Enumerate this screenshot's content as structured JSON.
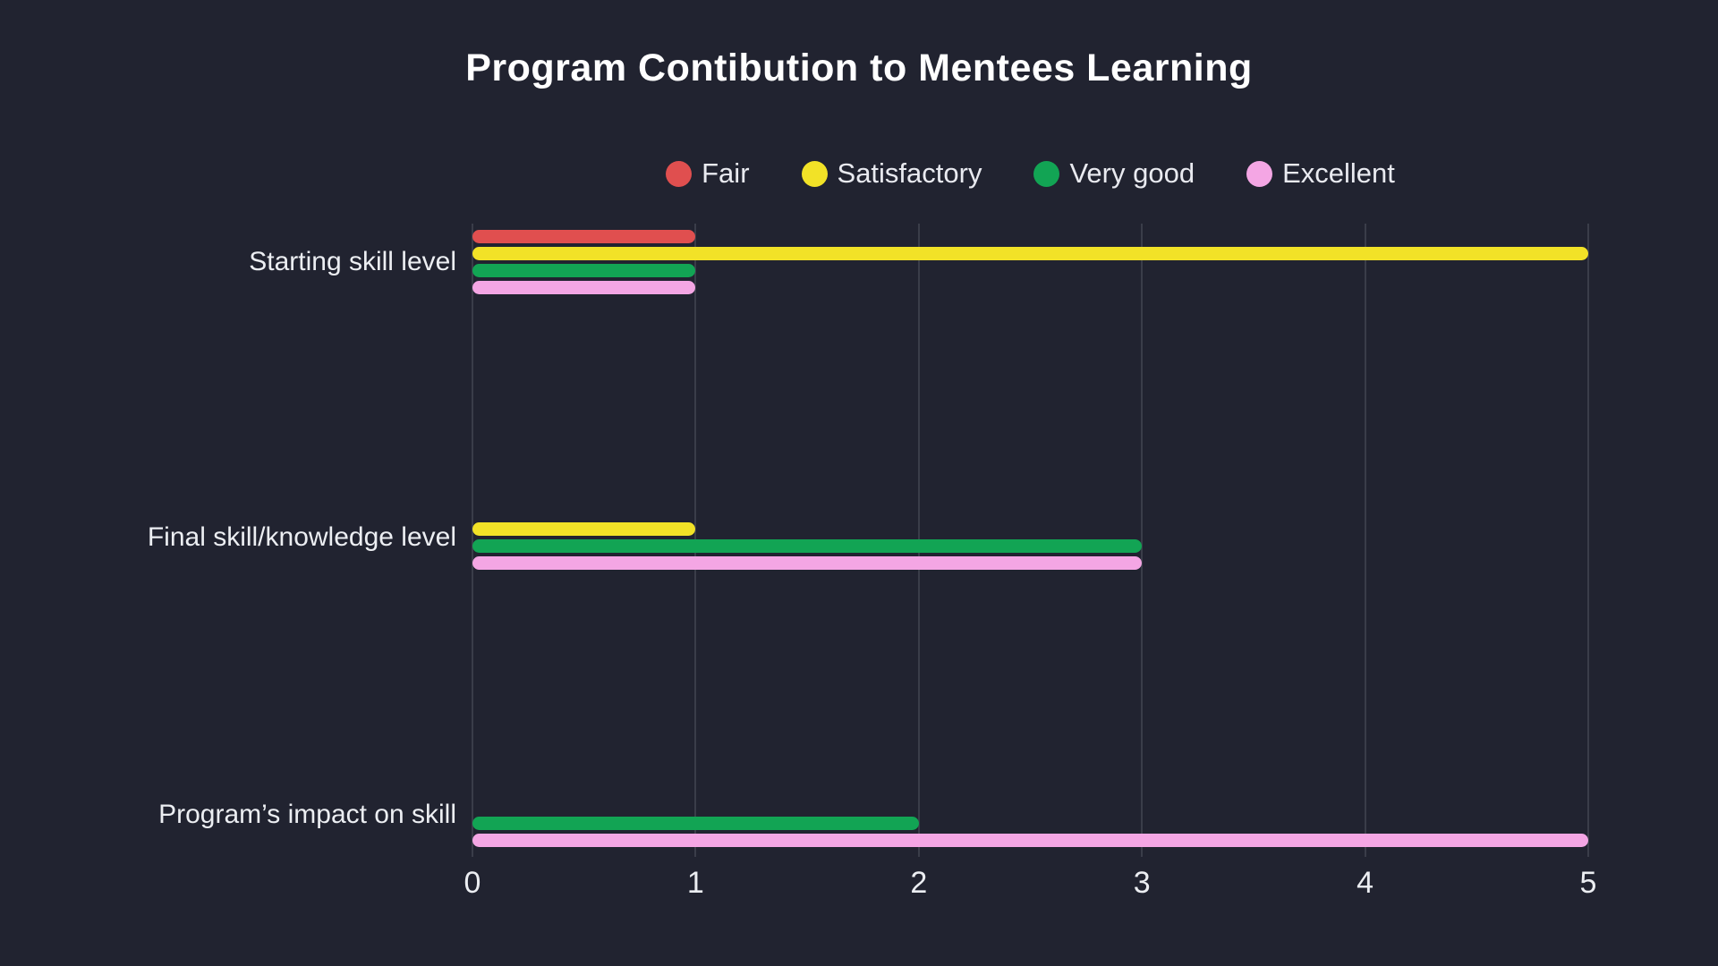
{
  "chart_data": {
    "type": "bar",
    "orientation": "horizontal",
    "title": "Program Contibution to Mentees Learning",
    "categories": [
      "Starting skill level",
      "Final skill/knowledge level",
      "Program’s impact on skill"
    ],
    "series": [
      {
        "name": "Fair",
        "color": "#e04f4f",
        "values": [
          1,
          0,
          0
        ]
      },
      {
        "name": "Satisfactory",
        "color": "#f2e227",
        "values": [
          5,
          1,
          0
        ]
      },
      {
        "name": "Very good",
        "color": "#12a454",
        "values": [
          1,
          3,
          2
        ]
      },
      {
        "name": "Excellent",
        "color": "#f4a6e4",
        "values": [
          1,
          3,
          5
        ]
      }
    ],
    "xlim": [
      0,
      5
    ],
    "xticks": [
      "0",
      "1",
      "2",
      "3",
      "4",
      "5"
    ],
    "grid": "vertical",
    "legend_position": "top",
    "colors": {
      "background": "#212330",
      "gridline": "#3a3d49",
      "title_text": "#ffffff",
      "label_text": "#eceef2"
    }
  }
}
